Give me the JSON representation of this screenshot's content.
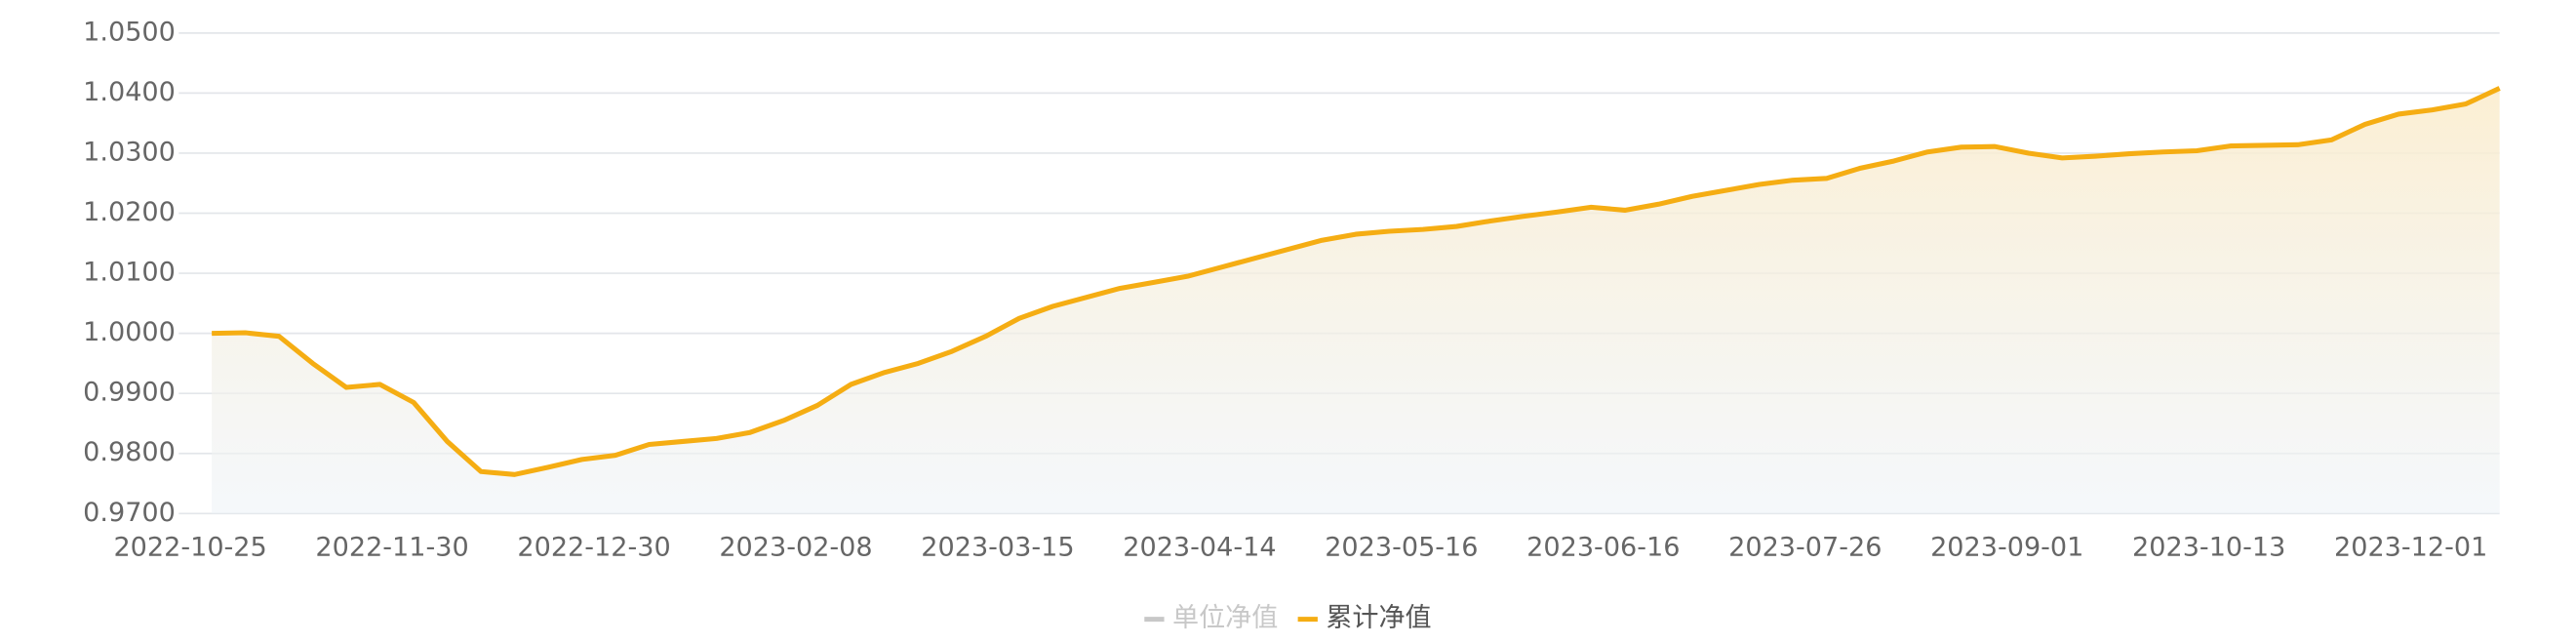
{
  "chart_data": {
    "type": "line",
    "area": true,
    "categories": [
      "2022-10-25",
      null,
      null,
      null,
      null,
      null,
      "2022-11-30",
      null,
      null,
      null,
      null,
      null,
      "2022-12-30",
      null,
      null,
      null,
      null,
      null,
      "2023-02-08",
      null,
      null,
      null,
      null,
      null,
      "2023-03-15",
      null,
      null,
      null,
      null,
      null,
      "2023-04-14",
      null,
      null,
      null,
      null,
      null,
      "2023-05-16",
      null,
      null,
      null,
      null,
      null,
      "2023-06-16",
      null,
      null,
      null,
      null,
      null,
      "2023-07-26",
      null,
      null,
      null,
      null,
      null,
      "2023-09-01",
      null,
      null,
      null,
      null,
      null,
      "2023-10-13",
      null,
      null,
      null,
      null,
      null,
      "2023-12-01",
      null,
      null
    ],
    "series": [
      {
        "name": "累计净值",
        "color": "#f5ad13",
        "values": [
          1.0,
          1.0001,
          0.9995,
          0.995,
          0.991,
          0.9915,
          0.9885,
          0.982,
          0.977,
          0.9765,
          0.9777,
          0.979,
          0.9797,
          0.9815,
          0.982,
          0.9825,
          0.9835,
          0.9855,
          0.988,
          0.9915,
          0.9935,
          0.995,
          0.997,
          0.9995,
          1.0025,
          1.0045,
          1.006,
          1.0075,
          1.0085,
          1.0095,
          1.011,
          1.0125,
          1.014,
          1.0155,
          1.0165,
          1.017,
          1.0173,
          1.0178,
          1.0187,
          1.0195,
          1.0202,
          1.021,
          1.0205,
          1.0215,
          1.0228,
          1.0238,
          1.0248,
          1.0255,
          1.0258,
          1.0275,
          1.0287,
          1.0302,
          1.031,
          1.0311,
          1.03,
          1.0292,
          1.0295,
          1.0299,
          1.0302,
          1.0304,
          1.0312,
          1.0313,
          1.0314,
          1.0322,
          1.0348,
          1.0365,
          1.0372,
          1.0382,
          1.0408
        ]
      }
    ],
    "legend": [
      {
        "name": "单位净值",
        "color": "#c8c8c8"
      },
      {
        "name": "累计净值",
        "color": "#f5ad13"
      }
    ],
    "ylim": [
      0.97,
      1.05
    ],
    "yticks": [
      {
        "value": 0.97,
        "label": "0.9700"
      },
      {
        "value": 0.98,
        "label": "0.9800"
      },
      {
        "value": 0.99,
        "label": "0.9900"
      },
      {
        "value": 1.0,
        "label": "1.0000"
      },
      {
        "value": 1.01,
        "label": "1.0100"
      },
      {
        "value": 1.02,
        "label": "1.0200"
      },
      {
        "value": 1.03,
        "label": "1.0300"
      },
      {
        "value": 1.04,
        "label": "1.0400"
      },
      {
        "value": 1.05,
        "label": "1.0500"
      }
    ],
    "grid": true
  }
}
